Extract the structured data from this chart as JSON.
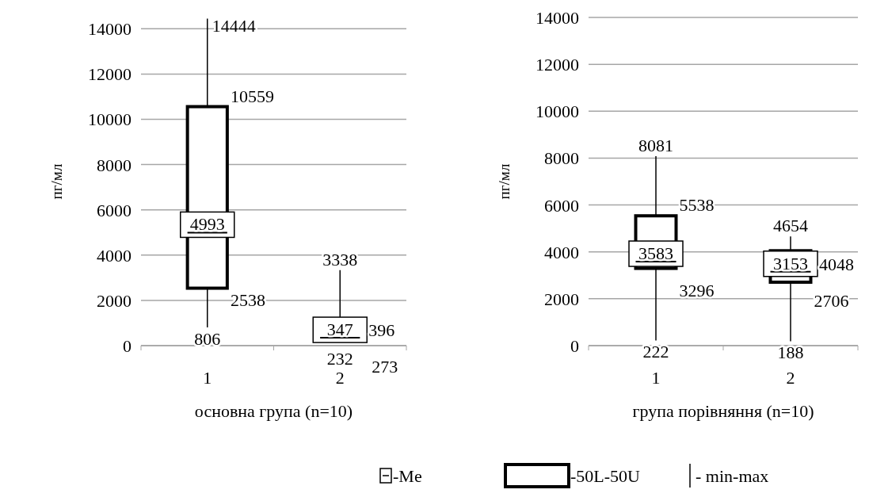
{
  "chart_data": [
    {
      "type": "box",
      "xlabel": "основна група (n=10)",
      "ylabel": "пг/мл",
      "categories": [
        "1",
        "2"
      ],
      "boxes": [
        {
          "low": 806,
          "q1": 2538,
          "median": 4993,
          "q3": 10559,
          "high": 14444
        },
        {
          "low": 232,
          "q1": 273,
          "median": 347,
          "q3": 396,
          "high": 3338
        }
      ],
      "annotations": [
        {
          "text": "14444",
          "x": "1",
          "y": 14444
        },
        {
          "text": "10559",
          "x": "1",
          "y": 10559
        },
        {
          "text": "4993",
          "x": "1",
          "y": 4993
        },
        {
          "text": "2538",
          "x": "1",
          "y": 2538
        },
        {
          "text": "806",
          "x": "1",
          "y": 806
        },
        {
          "text": "3338",
          "x": "2",
          "y": 3338
        },
        {
          "text": "396",
          "x": "2",
          "y": 396
        },
        {
          "text": "347",
          "x": "2",
          "y": 347
        },
        {
          "text": "273",
          "x": "2",
          "y": 273
        },
        {
          "text": "232",
          "x": "2",
          "y": 232
        }
      ],
      "ylim": [
        0,
        14500
      ],
      "yticks": [
        0,
        2000,
        4000,
        6000,
        8000,
        10000,
        12000,
        14000
      ],
      "grid": "y",
      "color": "#000000"
    },
    {
      "type": "box",
      "xlabel": "група порівняння (n=10)",
      "ylabel": "пг/мл",
      "categories": [
        "1",
        "2"
      ],
      "boxes": [
        {
          "low": 222,
          "q1": 3296,
          "median": 3583,
          "q3": 5538,
          "high": 8081
        },
        {
          "low": 188,
          "q1": 2706,
          "median": 3153,
          "q3": 4048,
          "high": 4654
        }
      ],
      "annotations": [
        {
          "text": "8081",
          "x": "1",
          "y": 8081
        },
        {
          "text": "5538",
          "x": "1",
          "y": 5538
        },
        {
          "text": "3583",
          "x": "1",
          "y": 3583
        },
        {
          "text": "3296",
          "x": "1",
          "y": 3296
        },
        {
          "text": "222",
          "x": "1",
          "y": 222
        },
        {
          "text": "4654",
          "x": "2",
          "y": 4654
        },
        {
          "text": "4048",
          "x": "2",
          "y": 4048
        },
        {
          "text": "3153",
          "x": "2",
          "y": 3153
        },
        {
          "text": "2706",
          "x": "2",
          "y": 2706
        },
        {
          "text": "188",
          "x": "2",
          "y": 188
        }
      ],
      "ylim": [
        0,
        14000
      ],
      "yticks": [
        0,
        2000,
        4000,
        6000,
        8000,
        10000,
        12000,
        14000
      ],
      "grid": "y",
      "color": "#000000"
    },
    {
      "type": "other",
      "annotations": [
        "-Me",
        "-50L-50U",
        "- min-max"
      ]
    }
  ]
}
